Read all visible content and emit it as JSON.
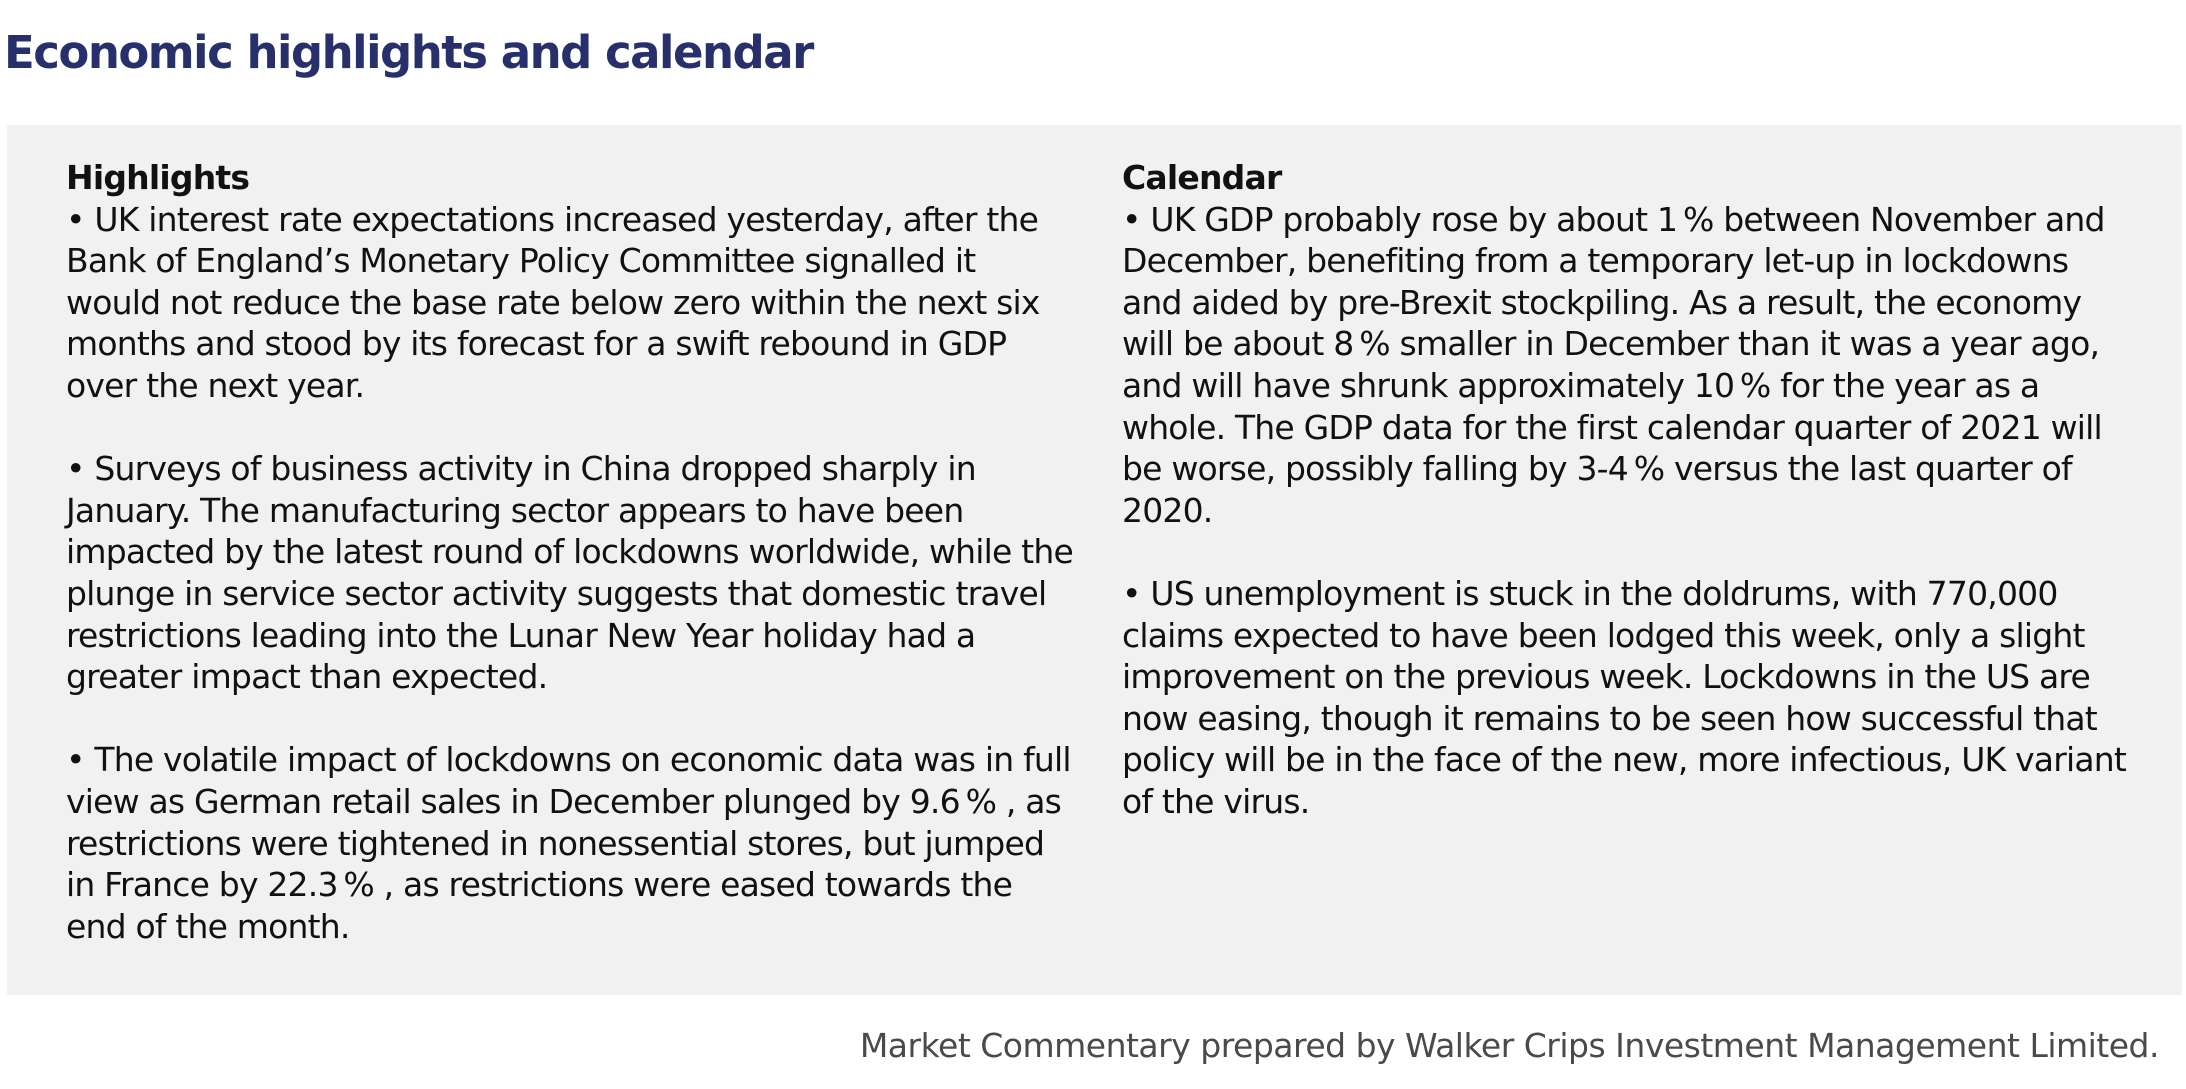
{
  "page": {
    "title": "Economic highlights and calendar",
    "footer": "Market Commentary prepared by Walker Crips Investment Management Limited."
  },
  "highlights": {
    "heading": "Highlights",
    "items": [
      "UK interest rate expectations increased yesterday, after the Bank of England’s Monetary Policy Committee signalled it would not reduce the base rate below zero within the next six months and stood by its forecast for a swift rebound in GDP over the next year.",
      "Surveys of business activity in China dropped sharply in January. The manufacturing sector appears to have been impacted by the latest round of lockdowns worldwide, while the plunge in service sector activity suggests that domestic travel restrictions leading into the Lunar New Year holiday had a greater impact than expected.",
      "The volatile impact of lockdowns on economic data was in full view as German retail sales in December plunged by 9.6 % , as restrictions were tightened in nonessential stores, but jumped in France by 22.3 % , as restrictions were eased towards the end of the month."
    ]
  },
  "calendar": {
    "heading": "Calendar",
    "items": [
      "UK GDP probably rose by about 1 %  between November and December, benefiting from a temporary let-up in lockdowns and aided by pre-Brexit stockpiling. As a result, the economy will be about 8 %  smaller in December than it was a year ago, and will have shrunk approximately 10 %  for the year as a whole. The GDP data for the first calendar quarter of 2021 will be worse, possibly falling by 3-4 % versus the last quarter of 2020.",
      "US unemployment is stuck in the doldrums, with 770,000 claims expected to have been lodged this week, only a slight improvement on the previous week. Lockdowns in the US are now easing, though it remains to be seen how successful that policy will be in the face of the new, more infectious, UK variant of the virus."
    ]
  },
  "colors": {
    "title": "#27306b",
    "panel_background": "#f1f1f1",
    "body_text": "#111111",
    "footer_text": "#4a4a4a"
  }
}
